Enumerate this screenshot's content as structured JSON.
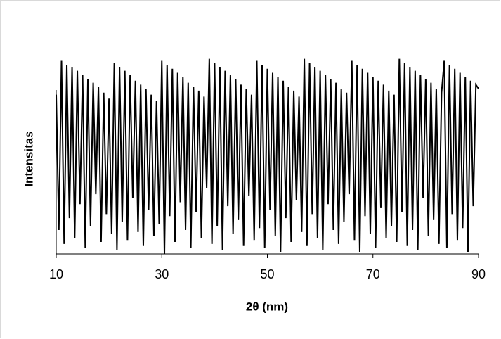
{
  "chart_data": {
    "type": "line",
    "x_label": "2θ (nm)",
    "y_label": "Intensitas",
    "color": "#000000",
    "xlim": [
      10,
      90
    ],
    "xticks": [
      10,
      30,
      50,
      70,
      90
    ],
    "ylim": [
      0,
      100
    ],
    "x": [
      10,
      10.5,
      11,
      11.5,
      12,
      12.5,
      13,
      13.5,
      14,
      14.5,
      15,
      15.5,
      16,
      16.5,
      17,
      17.5,
      18,
      18.5,
      19,
      19.5,
      20,
      20.5,
      21,
      21.5,
      22,
      22.5,
      23,
      23.5,
      24,
      24.5,
      25,
      25.5,
      26,
      26.5,
      27,
      27.5,
      28,
      28.5,
      29,
      29.5,
      30,
      30.5,
      31,
      31.5,
      32,
      32.5,
      33,
      33.5,
      34,
      34.5,
      35,
      35.5,
      36,
      36.5,
      37,
      37.5,
      38,
      38.5,
      39,
      39.5,
      40,
      40.5,
      41,
      41.5,
      42,
      42.5,
      43,
      43.5,
      44,
      44.5,
      45,
      45.5,
      46,
      46.5,
      47,
      47.5,
      48,
      48.5,
      49,
      49.5,
      50,
      50.5,
      51,
      51.5,
      52,
      52.5,
      53,
      53.5,
      54,
      54.5,
      55,
      55.5,
      56,
      56.5,
      57,
      57.5,
      58,
      58.5,
      59,
      59.5,
      60,
      60.5,
      61,
      61.5,
      62,
      62.5,
      63,
      63.5,
      64,
      64.5,
      65,
      65.5,
      66,
      66.5,
      67,
      67.5,
      68,
      68.5,
      69,
      69.5,
      70,
      70.5,
      71,
      71.5,
      72,
      72.5,
      73,
      73.5,
      74,
      74.5,
      75,
      75.5,
      76,
      76.5,
      77,
      77.5,
      78,
      78.5,
      79,
      79.5,
      80,
      80.5,
      81,
      81.5,
      82,
      82.5,
      83,
      83.5,
      84,
      84.5,
      85,
      85.5,
      86,
      86.5,
      87,
      87.5,
      88,
      88.5,
      89,
      89.5,
      90
    ],
    "values": [
      80,
      12,
      97,
      5,
      95,
      18,
      94,
      8,
      92,
      25,
      90,
      3,
      88,
      14,
      86,
      30,
      84,
      6,
      81,
      20,
      78,
      10,
      96,
      2,
      94,
      16,
      92,
      7,
      90,
      28,
      87,
      11,
      85,
      4,
      83,
      22,
      80,
      9,
      77,
      15,
      97,
      0,
      95,
      19,
      93,
      6,
      91,
      26,
      89,
      12,
      86,
      3,
      84,
      21,
      82,
      8,
      79,
      33,
      98,
      5,
      96,
      14,
      94,
      2,
      92,
      24,
      90,
      10,
      88,
      17,
      85,
      4,
      83,
      29,
      80,
      7,
      97,
      13,
      95,
      3,
      93,
      22,
      91,
      9,
      89,
      1,
      87,
      18,
      84,
      6,
      82,
      27,
      79,
      11,
      98,
      4,
      96,
      20,
      94,
      8,
      92,
      2,
      90,
      25,
      88,
      12,
      86,
      5,
      83,
      16,
      81,
      30,
      97,
      7,
      95,
      1,
      93,
      19,
      91,
      10,
      89,
      3,
      87,
      23,
      85,
      8,
      82,
      14,
      80,
      6,
      98,
      21,
      96,
      4,
      94,
      12,
      92,
      2,
      90,
      28,
      88,
      9,
      86,
      17,
      83,
      5,
      81,
      97,
      3,
      95,
      20,
      93,
      7,
      91,
      13,
      89,
      1,
      87,
      24,
      85,
      83
    ]
  }
}
